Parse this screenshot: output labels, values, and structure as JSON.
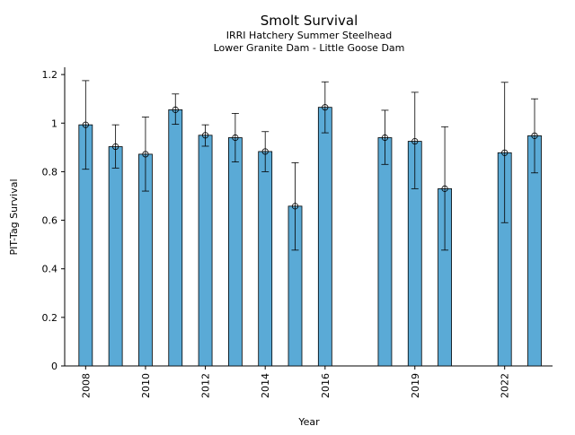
{
  "chart_data": {
    "type": "bar",
    "title": "Smolt Survival",
    "subtitle_lines": [
      "IRRI Hatchery Summer Steelhead",
      "Lower Granite Dam - Little Goose Dam"
    ],
    "xlabel": "Year",
    "ylabel": "PIT-Tag Survival",
    "ylim": [
      0,
      1.23
    ],
    "y_ticks": [
      0,
      0.2,
      0.4,
      0.6,
      0.8,
      1,
      1.2
    ],
    "y_tick_labels": [
      "0",
      "0.2",
      "0.4",
      "0.6",
      "0.8",
      "1",
      "1.2"
    ],
    "x_ticks": [
      2008,
      2010,
      2012,
      2014,
      2016,
      2019,
      2022
    ],
    "x_tick_labels": [
      "2008",
      "2010",
      "2012",
      "2014",
      "2016",
      "2019",
      "2022"
    ],
    "xlim": [
      2007.3,
      2023.6
    ],
    "bar_color": "#5aaad6",
    "grid": false,
    "series": [
      {
        "x": [
          2008,
          2009,
          2010,
          2011,
          2012,
          2013,
          2014,
          2015,
          2016,
          2018,
          2019,
          2020,
          2022,
          2023
        ],
        "values": [
          0.993,
          0.903,
          0.872,
          1.055,
          0.95,
          0.94,
          0.883,
          0.658,
          1.065,
          0.94,
          0.925,
          0.73,
          0.878,
          0.948
        ],
        "err_low": [
          0.81,
          0.815,
          0.72,
          0.995,
          0.905,
          0.84,
          0.8,
          0.477,
          0.96,
          0.83,
          0.73,
          0.477,
          0.59,
          0.795
        ],
        "err_high": [
          1.175,
          0.993,
          1.025,
          1.12,
          0.993,
          1.04,
          0.965,
          0.837,
          1.17,
          1.053,
          1.127,
          0.985,
          1.168,
          1.1
        ]
      }
    ]
  }
}
